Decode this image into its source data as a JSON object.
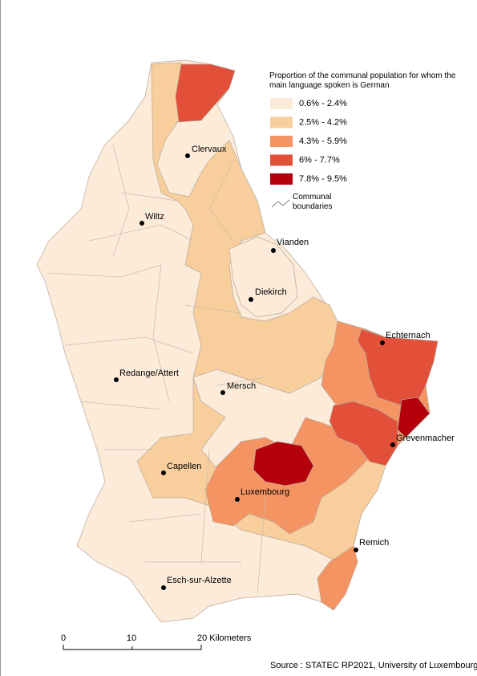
{
  "legend": {
    "title": "Proportion of the communal population for whom the main language spoken is German",
    "classes": [
      {
        "label": "0.6% - 2.4%",
        "color": "#fcebd9"
      },
      {
        "label": "2.5% - 4.2%",
        "color": "#f8cf9c"
      },
      {
        "label": "4.3% - 5.9%",
        "color": "#f59463"
      },
      {
        "label": "6% - 7.7%",
        "color": "#e2503a"
      },
      {
        "label": "7.8% - 9.5%",
        "color": "#b3000c"
      }
    ],
    "boundary_label": "Communal boundaries"
  },
  "cities": [
    "Clervaux",
    "Wiltz",
    "Vianden",
    "Diekirch",
    "Echternach",
    "Redange/Attert",
    "Mersch",
    "Grevenmacher",
    "Capellen",
    "Luxembourg",
    "Remich",
    "Esch-sur-Alzette"
  ],
  "scale_bar": {
    "labels": [
      "0",
      "10",
      "20 Kilometers"
    ]
  },
  "source": "Source : STATEC RP2021, University of Luxembourg"
}
